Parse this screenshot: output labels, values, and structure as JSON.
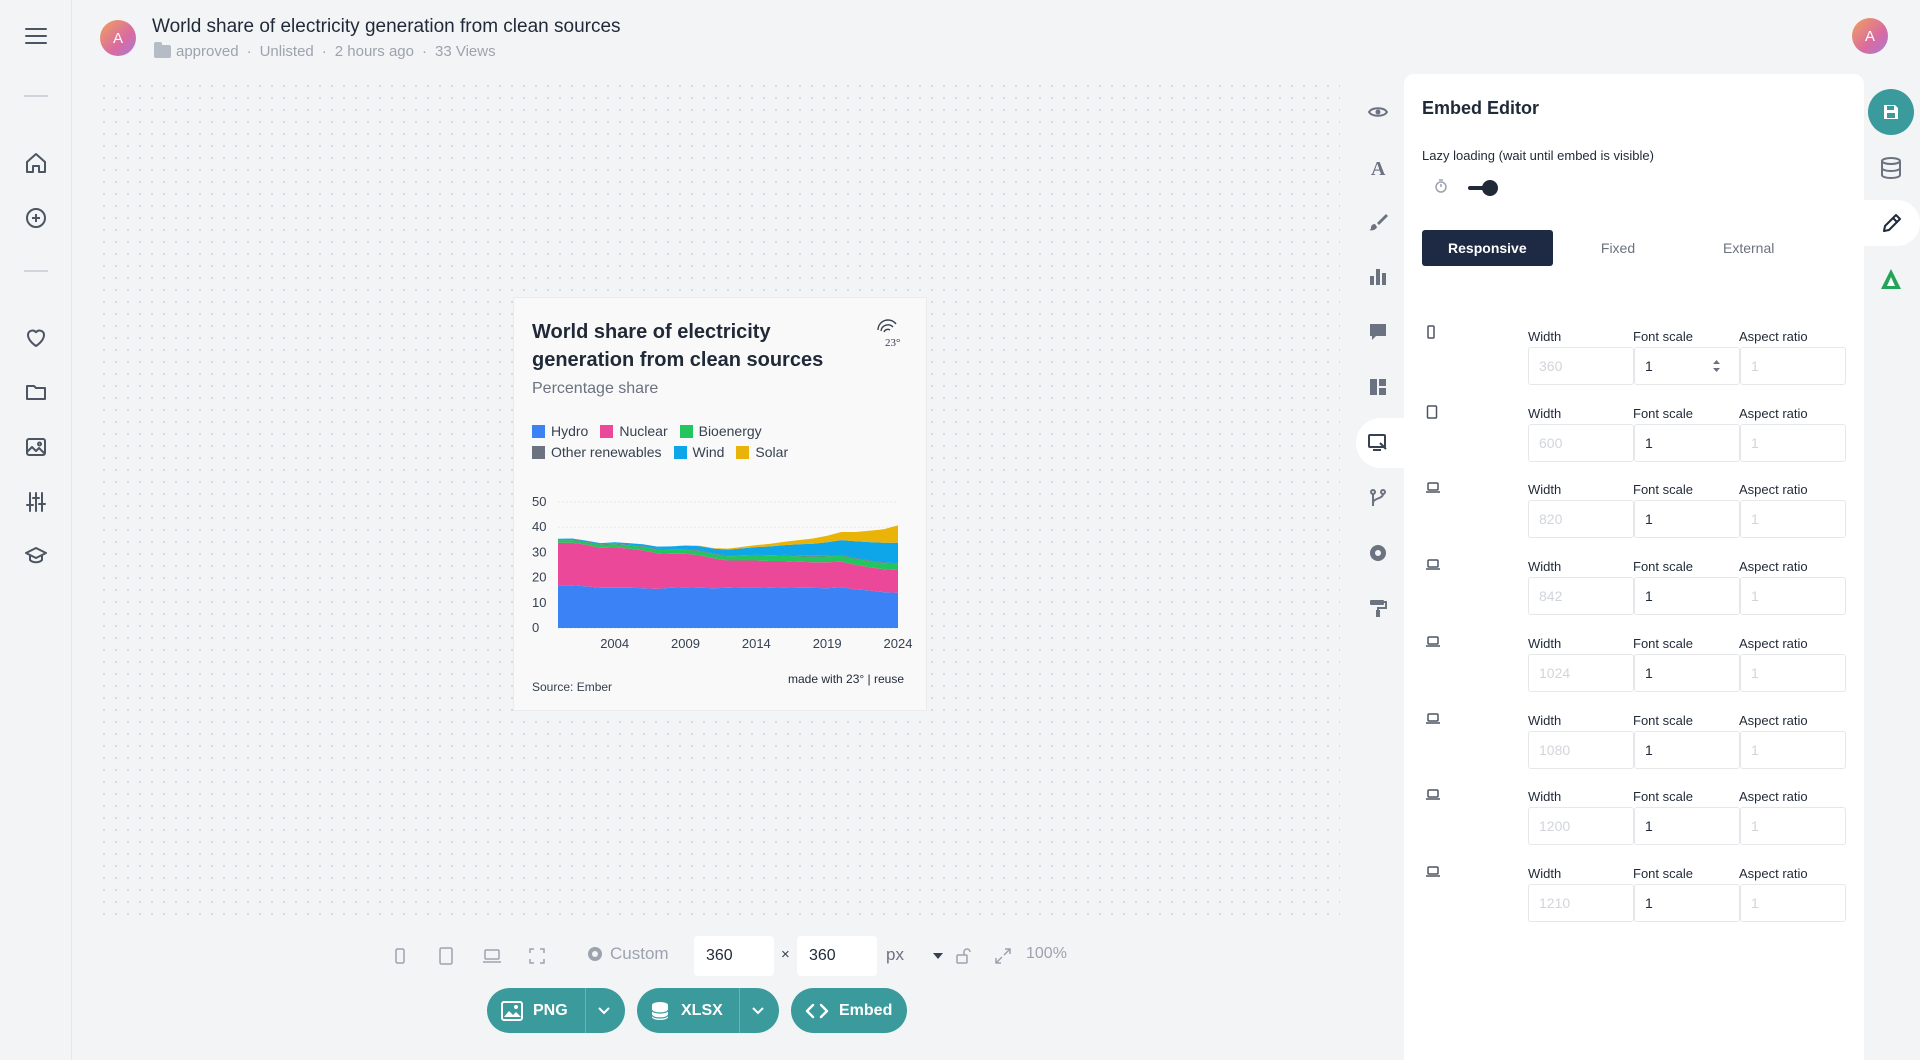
{
  "header": {
    "avatar_letter": "A",
    "title": "World share of electricity generation from clean sources",
    "folder": "approved",
    "visibility": "Unlisted",
    "time": "2 hours ago",
    "views": "33 Views",
    "user_avatar_letter": "A"
  },
  "leftnav": {
    "items": [
      "menu-icon",
      "home-icon",
      "add-icon",
      "heart-icon",
      "folder-icon",
      "image-icon",
      "sliders-icon",
      "graduation-icon"
    ]
  },
  "chart": {
    "title": "World share of electricity generation from clean sources",
    "subtitle": "Percentage share",
    "source": "Source: Ember",
    "credit": "made with 23° | reuse",
    "logo_text": "23°"
  },
  "chart_data": {
    "type": "area",
    "stacked": true,
    "x": [
      2000,
      2001,
      2002,
      2003,
      2004,
      2005,
      2006,
      2007,
      2008,
      2009,
      2010,
      2011,
      2012,
      2013,
      2014,
      2015,
      2016,
      2017,
      2018,
      2019,
      2020,
      2021,
      2022,
      2023,
      2024
    ],
    "x_ticks": [
      "2004",
      "2009",
      "2014",
      "2019",
      "2024"
    ],
    "y_ticks": [
      "0",
      "10",
      "20",
      "30",
      "40",
      "50"
    ],
    "ylim": [
      0,
      50
    ],
    "series": [
      {
        "name": "Hydro",
        "color": "#3b82f6",
        "values": [
          17.0,
          17.0,
          16.5,
          16.0,
          16.0,
          16.0,
          15.8,
          15.5,
          16.0,
          16.2,
          16.0,
          15.8,
          16.0,
          16.2,
          16.2,
          16.0,
          16.2,
          16.0,
          15.9,
          15.8,
          16.2,
          15.3,
          14.9,
          14.2,
          14.0
        ]
      },
      {
        "name": "Nuclear",
        "color": "#ec4899",
        "values": [
          16.8,
          16.8,
          16.5,
          15.8,
          16.0,
          15.5,
          15.0,
          14.2,
          13.5,
          13.3,
          12.9,
          11.8,
          10.8,
          10.6,
          10.6,
          10.6,
          10.4,
          10.3,
          10.2,
          10.3,
          10.1,
          9.8,
          9.2,
          9.1,
          9.0
        ]
      },
      {
        "name": "Bioenergy",
        "color": "#22c55e",
        "values": [
          1.1,
          1.1,
          1.1,
          1.2,
          1.2,
          1.3,
          1.4,
          1.4,
          1.5,
          1.5,
          1.6,
          1.6,
          1.7,
          1.8,
          1.9,
          2.0,
          2.1,
          2.1,
          2.2,
          2.3,
          2.4,
          2.4,
          2.4,
          2.4,
          2.4
        ]
      },
      {
        "name": "Other renewables",
        "color": "#6b7280",
        "values": [
          0.3,
          0.3,
          0.3,
          0.3,
          0.3,
          0.3,
          0.3,
          0.3,
          0.3,
          0.3,
          0.3,
          0.3,
          0.3,
          0.3,
          0.3,
          0.3,
          0.3,
          0.3,
          0.3,
          0.3,
          0.3,
          0.3,
          0.3,
          0.3,
          0.3
        ]
      },
      {
        "name": "Wind",
        "color": "#0ea5e9",
        "values": [
          0.2,
          0.3,
          0.3,
          0.4,
          0.5,
          0.6,
          0.7,
          0.9,
          1.1,
          1.4,
          1.7,
          2.0,
          2.3,
          2.7,
          3.1,
          3.5,
          3.9,
          4.5,
          4.8,
          5.3,
          5.9,
          6.6,
          7.3,
          7.8,
          8.1
        ]
      },
      {
        "name": "Solar",
        "color": "#eab308",
        "values": [
          0.0,
          0.0,
          0.0,
          0.0,
          0.0,
          0.0,
          0.0,
          0.0,
          0.0,
          0.1,
          0.1,
          0.2,
          0.4,
          0.6,
          0.8,
          1.0,
          1.3,
          1.7,
          2.1,
          2.6,
          3.2,
          3.7,
          4.5,
          5.4,
          6.9
        ]
      }
    ]
  },
  "toolbar": {
    "custom_label": "Custom",
    "width": "360",
    "height": "360",
    "times": "×",
    "unit": "px",
    "zoom": "100%",
    "png_label": "PNG",
    "xlsx_label": "XLSX",
    "embed_label": "Embed"
  },
  "panel": {
    "title": "Embed Editor",
    "lazy_label": "Lazy loading (wait until embed is visible)",
    "lazy_on": true,
    "tabs": [
      "Responsive",
      "Fixed",
      "External"
    ],
    "active_tab": "Responsive",
    "labels": {
      "width": "Width",
      "font_scale": "Font scale",
      "aspect_ratio": "Aspect ratio"
    },
    "breakpoints": [
      {
        "width_placeholder": "360",
        "font_scale": "1",
        "aspect_placeholder": "1",
        "device": "phone"
      },
      {
        "width_placeholder": "600",
        "font_scale": "1",
        "aspect_placeholder": "1",
        "device": "tablet"
      },
      {
        "width_placeholder": "820",
        "font_scale": "1",
        "aspect_placeholder": "1",
        "device": "laptop"
      },
      {
        "width_placeholder": "842",
        "font_scale": "1",
        "aspect_placeholder": "1",
        "device": "laptop"
      },
      {
        "width_placeholder": "1024",
        "font_scale": "1",
        "aspect_placeholder": "1",
        "device": "laptop"
      },
      {
        "width_placeholder": "1080",
        "font_scale": "1",
        "aspect_placeholder": "1",
        "device": "laptop"
      },
      {
        "width_placeholder": "1200",
        "font_scale": "1",
        "aspect_placeholder": "1",
        "device": "laptop"
      },
      {
        "width_placeholder": "1210",
        "font_scale": "1",
        "aspect_placeholder": "1",
        "device": "laptop"
      }
    ]
  },
  "colors": {
    "accent": "#3a9a9c",
    "tab_active": "#1e2a44",
    "canvas_bg": "#f3f4f6"
  }
}
